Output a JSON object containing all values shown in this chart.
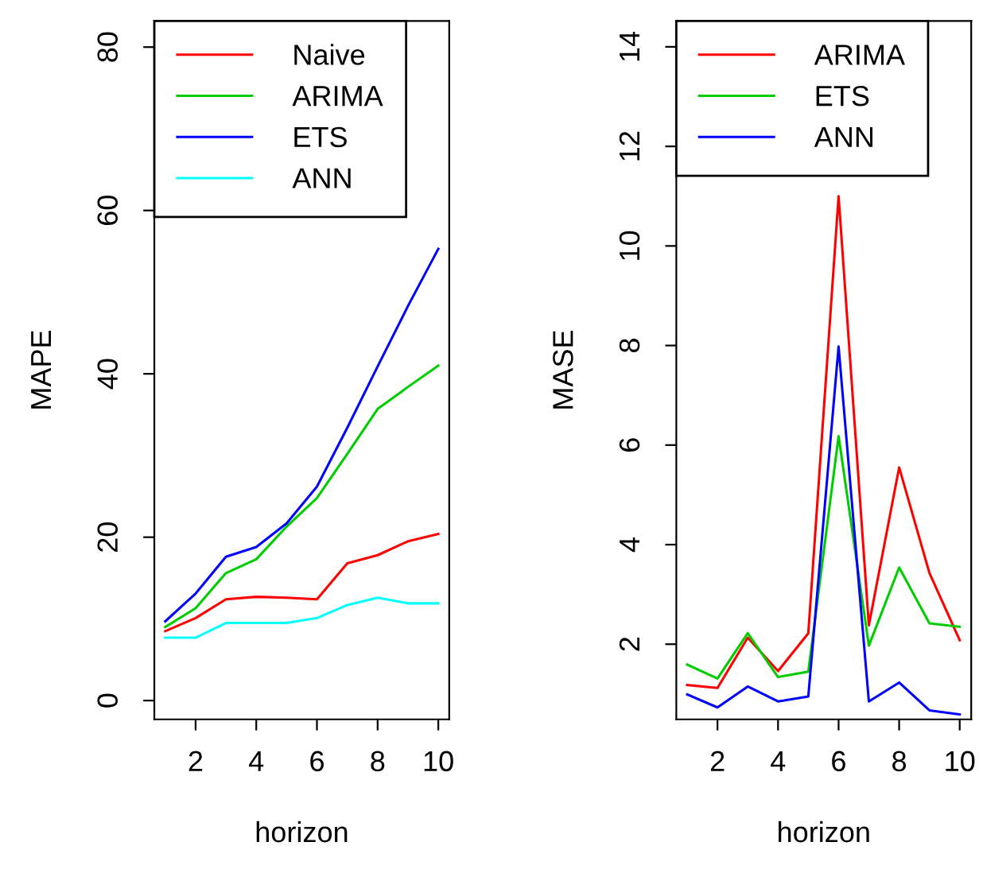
{
  "chart_data": [
    {
      "type": "line",
      "xlabel": "horizon",
      "ylabel": "MAPE",
      "x": [
        1,
        2,
        3,
        4,
        5,
        6,
        7,
        8,
        9,
        10
      ],
      "xlim": [
        0.64,
        10.36
      ],
      "xticks": [
        2,
        4,
        6,
        8,
        10
      ],
      "ylim": [
        -2.3,
        83.2
      ],
      "yticks": [
        0,
        20,
        40,
        60,
        80
      ],
      "legend": "top left",
      "grid": false,
      "series": [
        {
          "name": "Naive",
          "color": "#ff0000",
          "values": [
            8.5,
            10.1,
            12.4,
            12.7,
            12.6,
            12.4,
            16.8,
            17.8,
            19.5,
            20.4
          ]
        },
        {
          "name": "ARIMA",
          "color": "#00cd00",
          "values": [
            9.0,
            11.3,
            15.6,
            17.3,
            21.3,
            24.8,
            30.2,
            35.7,
            38.4,
            41.0
          ]
        },
        {
          "name": "ETS",
          "color": "#0000ff",
          "values": [
            9.7,
            13.1,
            17.6,
            18.8,
            21.7,
            26.2,
            33.4,
            40.9,
            48.3,
            55.3
          ]
        },
        {
          "name": "ANN",
          "color": "#00ffff",
          "values": [
            7.7,
            7.7,
            9.5,
            9.5,
            9.5,
            10.1,
            11.7,
            12.6,
            11.9,
            11.9
          ]
        }
      ]
    },
    {
      "type": "line",
      "xlabel": "horizon",
      "ylabel": "MASE",
      "x": [
        1,
        2,
        3,
        4,
        5,
        6,
        7,
        8,
        9,
        10
      ],
      "xlim": [
        0.64,
        10.38
      ],
      "xticks": [
        2,
        4,
        6,
        8,
        10
      ],
      "ylim": [
        0.49,
        14.52
      ],
      "yticks": [
        2,
        4,
        6,
        8,
        10,
        12,
        14
      ],
      "legend": "top left",
      "grid": false,
      "series": [
        {
          "name": "ARIMA",
          "color": "#ff0000",
          "values": [
            1.18,
            1.12,
            2.13,
            1.46,
            2.22,
            11.0,
            2.38,
            5.55,
            3.43,
            2.08
          ]
        },
        {
          "name": "ETS",
          "color": "#00cd00",
          "values": [
            1.59,
            1.31,
            2.22,
            1.34,
            1.45,
            6.18,
            1.97,
            3.54,
            2.42,
            2.35
          ]
        },
        {
          "name": "ANN",
          "color": "#0000ff",
          "values": [
            0.99,
            0.73,
            1.15,
            0.85,
            0.95,
            7.98,
            0.85,
            1.23,
            0.67,
            0.59
          ]
        }
      ]
    }
  ]
}
